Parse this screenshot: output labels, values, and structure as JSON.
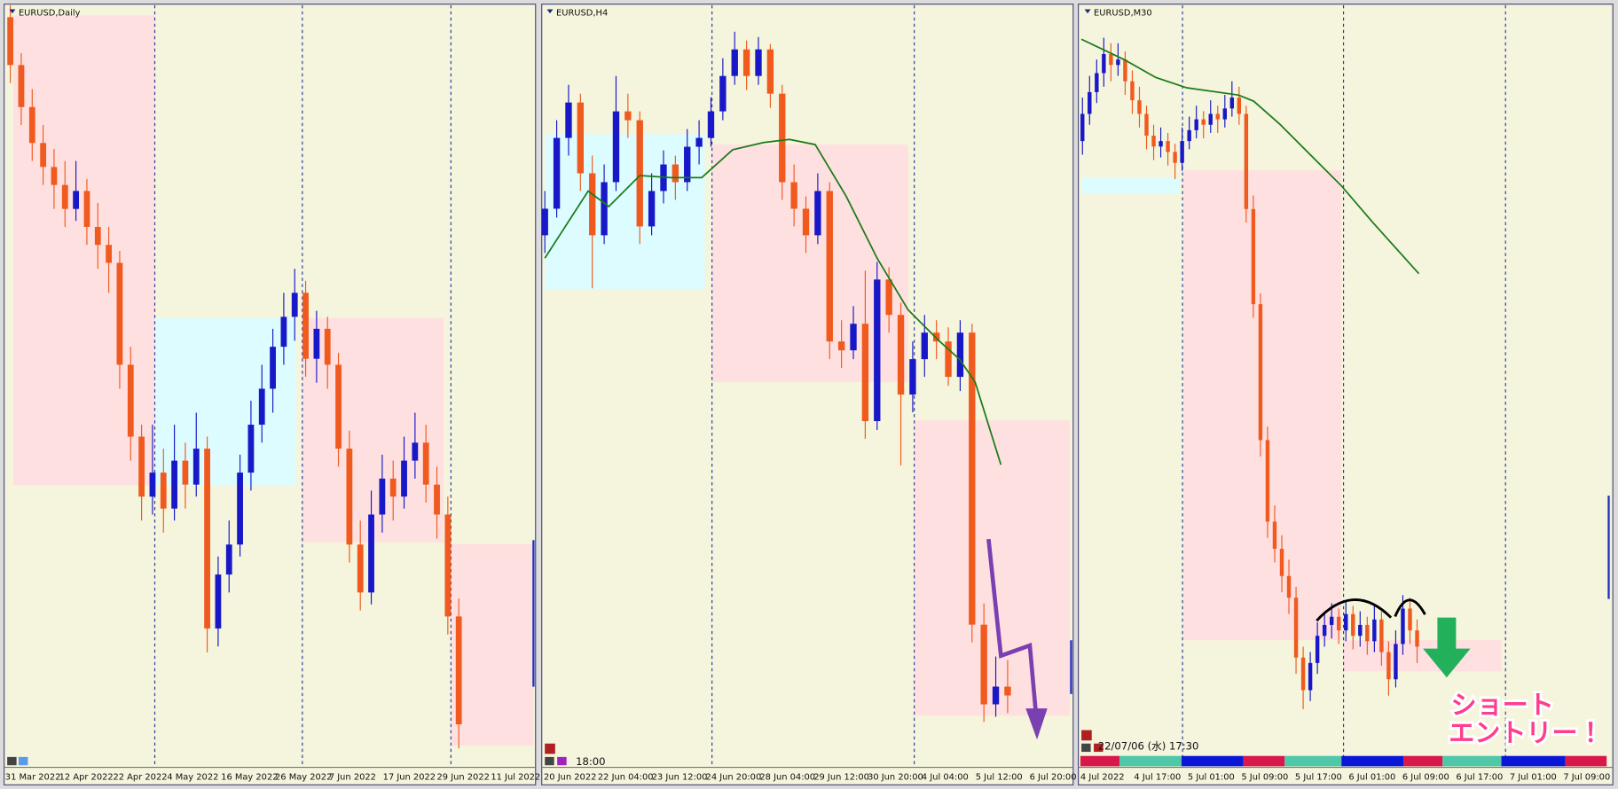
{
  "chart_data": [
    {
      "type": "candlestick",
      "title": "EURUSD,Daily",
      "ylim": [
        0.993,
        1.12
      ],
      "up_color": "#1818c8",
      "down_color": "#f05a1e",
      "xtick_labels": [
        "31 Mar 2022",
        "12 Apr 2022",
        "22 Apr 2022",
        "4 May 2022",
        "16 May 2022",
        "26 May 2022",
        "7 Jun 2022",
        "17 Jun 2022",
        "29 Jun 2022",
        "11 Jul 2022"
      ],
      "annotations": [],
      "candles": [
        [
          1.118,
          1.12,
          1.107,
          1.11
        ],
        [
          1.11,
          1.112,
          1.1,
          1.103
        ],
        [
          1.103,
          1.106,
          1.094,
          1.097
        ],
        [
          1.097,
          1.1,
          1.09,
          1.093
        ],
        [
          1.093,
          1.096,
          1.086,
          1.09
        ],
        [
          1.09,
          1.094,
          1.083,
          1.086
        ],
        [
          1.086,
          1.094,
          1.084,
          1.089
        ],
        [
          1.089,
          1.091,
          1.08,
          1.083
        ],
        [
          1.083,
          1.087,
          1.076,
          1.08
        ],
        [
          1.08,
          1.083,
          1.072,
          1.077
        ],
        [
          1.077,
          1.079,
          1.056,
          1.06
        ],
        [
          1.06,
          1.063,
          1.044,
          1.048
        ],
        [
          1.048,
          1.05,
          1.034,
          1.038
        ],
        [
          1.038,
          1.05,
          1.035,
          1.042
        ],
        [
          1.042,
          1.046,
          1.032,
          1.036
        ],
        [
          1.036,
          1.05,
          1.034,
          1.044
        ],
        [
          1.044,
          1.047,
          1.036,
          1.04
        ],
        [
          1.04,
          1.052,
          1.038,
          1.046
        ],
        [
          1.046,
          1.048,
          1.012,
          1.016
        ],
        [
          1.016,
          1.028,
          1.013,
          1.025
        ],
        [
          1.025,
          1.034,
          1.022,
          1.03
        ],
        [
          1.03,
          1.045,
          1.028,
          1.042
        ],
        [
          1.042,
          1.054,
          1.039,
          1.05
        ],
        [
          1.05,
          1.06,
          1.047,
          1.056
        ],
        [
          1.056,
          1.066,
          1.052,
          1.063
        ],
        [
          1.063,
          1.072,
          1.06,
          1.068
        ],
        [
          1.068,
          1.076,
          1.064,
          1.072
        ],
        [
          1.072,
          1.074,
          1.058,
          1.061
        ],
        [
          1.061,
          1.069,
          1.057,
          1.066
        ],
        [
          1.066,
          1.068,
          1.056,
          1.06
        ],
        [
          1.06,
          1.062,
          1.043,
          1.046
        ],
        [
          1.046,
          1.049,
          1.027,
          1.03
        ],
        [
          1.03,
          1.034,
          1.019,
          1.022
        ],
        [
          1.022,
          1.039,
          1.02,
          1.035
        ],
        [
          1.035,
          1.045,
          1.032,
          1.041
        ],
        [
          1.041,
          1.044,
          1.034,
          1.038
        ],
        [
          1.038,
          1.048,
          1.036,
          1.044
        ],
        [
          1.044,
          1.052,
          1.041,
          1.047
        ],
        [
          1.047,
          1.05,
          1.037,
          1.04
        ],
        [
          1.04,
          1.043,
          1.031,
          1.035
        ],
        [
          1.035,
          1.038,
          1.015,
          1.018
        ],
        [
          1.018,
          1.021,
          0.996,
          1.0
        ]
      ]
    },
    {
      "type": "candlestick",
      "title": "EURUSD,H4",
      "ylim": [
        1.02,
        1.063
      ],
      "up_color": "#1818c8",
      "down_color": "#f05a1e",
      "xtick_labels": [
        "20 Jun 2022",
        "22 Jun 04:00",
        "23 Jun 12:00",
        "24 Jun 20:00",
        "28 Jun 04:00",
        "29 Jun 12:00",
        "30 Jun 20:00",
        "4 Jul 04:00",
        "5 Jul 12:00",
        "6 Jul 20:00"
      ],
      "annotations": [
        "18:00"
      ],
      "candles": [
        [
          1.05,
          1.0525,
          1.049,
          1.0515
        ],
        [
          1.0515,
          1.0565,
          1.051,
          1.0555
        ],
        [
          1.0555,
          1.0585,
          1.0545,
          1.0575
        ],
        [
          1.0575,
          1.058,
          1.0525,
          1.0535
        ],
        [
          1.0535,
          1.0545,
          1.047,
          1.05
        ],
        [
          1.05,
          1.054,
          1.0495,
          1.053
        ],
        [
          1.053,
          1.059,
          1.0525,
          1.057
        ],
        [
          1.057,
          1.058,
          1.0555,
          1.0565
        ],
        [
          1.0565,
          1.057,
          1.0495,
          1.0505
        ],
        [
          1.0505,
          1.0535,
          1.05,
          1.0525
        ],
        [
          1.0525,
          1.0548,
          1.0518,
          1.054
        ],
        [
          1.054,
          1.0545,
          1.052,
          1.053
        ],
        [
          1.053,
          1.056,
          1.0525,
          1.055
        ],
        [
          1.055,
          1.0565,
          1.054,
          1.0555
        ],
        [
          1.0555,
          1.0578,
          1.055,
          1.057
        ],
        [
          1.057,
          1.06,
          1.0565,
          1.059
        ],
        [
          1.059,
          1.0615,
          1.0585,
          1.0605
        ],
        [
          1.0605,
          1.061,
          1.0582,
          1.059
        ],
        [
          1.059,
          1.0612,
          1.0585,
          1.0605
        ],
        [
          1.0605,
          1.0608,
          1.0572,
          1.058
        ],
        [
          1.058,
          1.0585,
          1.052,
          1.053
        ],
        [
          1.053,
          1.054,
          1.0505,
          1.0515
        ],
        [
          1.0515,
          1.0522,
          1.049,
          1.05
        ],
        [
          1.05,
          1.0535,
          1.0495,
          1.0525
        ],
        [
          1.0525,
          1.053,
          1.043,
          1.044
        ],
        [
          1.044,
          1.0452,
          1.0425,
          1.0435
        ],
        [
          1.0435,
          1.046,
          1.043,
          1.045
        ],
        [
          1.045,
          1.048,
          1.0385,
          1.0395
        ],
        [
          1.0395,
          1.0485,
          1.039,
          1.0475
        ],
        [
          1.0475,
          1.0482,
          1.0445,
          1.0455
        ],
        [
          1.0455,
          1.0462,
          1.037,
          1.041
        ],
        [
          1.041,
          1.044,
          1.04,
          1.043
        ],
        [
          1.043,
          1.0455,
          1.042,
          1.0445
        ],
        [
          1.0445,
          1.0452,
          1.043,
          1.044
        ],
        [
          1.044,
          1.0448,
          1.0415,
          1.042
        ],
        [
          1.042,
          1.0452,
          1.0412,
          1.0445
        ],
        [
          1.0445,
          1.045,
          1.027,
          1.028
        ],
        [
          1.028,
          1.0292,
          1.0225,
          1.0235
        ],
        [
          1.0235,
          1.0262,
          1.0228,
          1.0245
        ],
        [
          1.0245,
          1.026,
          1.023,
          1.024
        ]
      ]
    },
    {
      "type": "candlestick",
      "title": "EURUSD,M30",
      "ylim": [
        1.02,
        1.048
      ],
      "up_color": "#1818c8",
      "down_color": "#f05a1e",
      "xtick_labels": [
        "4 Jul 2022",
        "4 Jul 17:00",
        "5 Jul 01:00",
        "5 Jul 09:00",
        "5 Jul 17:00",
        "6 Jul 01:00",
        "6 Jul 09:00",
        "6 Jul 17:00",
        "7 Jul 01:00",
        "7 Jul 09:00"
      ],
      "annotations": [
        "22/07/06 (水) 17:30",
        "ショート",
        "エントリー！"
      ],
      "candles": [
        [
          1.043,
          1.0446,
          1.0425,
          1.044
        ],
        [
          1.044,
          1.0454,
          1.0436,
          1.0448
        ],
        [
          1.0448,
          1.046,
          1.0444,
          1.0455
        ],
        [
          1.0455,
          1.0468,
          1.045,
          1.0462
        ],
        [
          1.0462,
          1.0466,
          1.0452,
          1.0458
        ],
        [
          1.0458,
          1.0466,
          1.0454,
          1.046
        ],
        [
          1.046,
          1.0463,
          1.0447,
          1.0452
        ],
        [
          1.0452,
          1.0456,
          1.044,
          1.0445
        ],
        [
          1.0445,
          1.045,
          1.0435,
          1.044
        ],
        [
          1.044,
          1.0443,
          1.0427,
          1.0432
        ],
        [
          1.0432,
          1.0436,
          1.0423,
          1.0428
        ],
        [
          1.0428,
          1.0435,
          1.0424,
          1.043
        ],
        [
          1.043,
          1.0433,
          1.0421,
          1.0426
        ],
        [
          1.0426,
          1.0429,
          1.0416,
          1.0422
        ],
        [
          1.0422,
          1.0435,
          1.0419,
          1.043
        ],
        [
          1.043,
          1.0439,
          1.0427,
          1.0434
        ],
        [
          1.0434,
          1.0443,
          1.0431,
          1.0438
        ],
        [
          1.0438,
          1.0441,
          1.0431,
          1.0436
        ],
        [
          1.0436,
          1.0445,
          1.0433,
          1.044
        ],
        [
          1.044,
          1.0443,
          1.0433,
          1.0438
        ],
        [
          1.0438,
          1.0447,
          1.0435,
          1.0442
        ],
        [
          1.0442,
          1.0452,
          1.0439,
          1.0446
        ],
        [
          1.0446,
          1.045,
          1.0436,
          1.044
        ],
        [
          1.044,
          1.0443,
          1.04,
          1.0405
        ],
        [
          1.0405,
          1.041,
          1.0365,
          1.037
        ],
        [
          1.037,
          1.0374,
          1.0314,
          1.032
        ],
        [
          1.032,
          1.0325,
          1.0284,
          1.029
        ],
        [
          1.029,
          1.0296,
          1.0275,
          1.028
        ],
        [
          1.028,
          1.0285,
          1.0264,
          1.027
        ],
        [
          1.027,
          1.0276,
          1.0256,
          1.0262
        ],
        [
          1.0262,
          1.0266,
          1.0234,
          1.024
        ],
        [
          1.024,
          1.0244,
          1.0221,
          1.0228
        ],
        [
          1.0228,
          1.0242,
          1.0224,
          1.0238
        ],
        [
          1.0238,
          1.0253,
          1.0234,
          1.0248
        ],
        [
          1.0248,
          1.0257,
          1.0244,
          1.0252
        ],
        [
          1.0252,
          1.026,
          1.0247,
          1.0255
        ],
        [
          1.0255,
          1.0258,
          1.0245,
          1.025
        ],
        [
          1.025,
          1.0261,
          1.0246,
          1.0256
        ],
        [
          1.0256,
          1.0259,
          1.0243,
          1.0248
        ],
        [
          1.0248,
          1.0257,
          1.0244,
          1.0252
        ],
        [
          1.0252,
          1.0255,
          1.0241,
          1.0246
        ],
        [
          1.0246,
          1.0259,
          1.0242,
          1.0254
        ],
        [
          1.0254,
          1.0257,
          1.0237,
          1.0242
        ],
        [
          1.0242,
          1.0246,
          1.0226,
          1.0232
        ],
        [
          1.0232,
          1.025,
          1.0229,
          1.0245
        ],
        [
          1.0245,
          1.0263,
          1.0241,
          1.0258
        ],
        [
          1.0258,
          1.0262,
          1.0245,
          1.025
        ],
        [
          1.025,
          1.0254,
          1.0238,
          1.0244
        ]
      ]
    }
  ]
}
